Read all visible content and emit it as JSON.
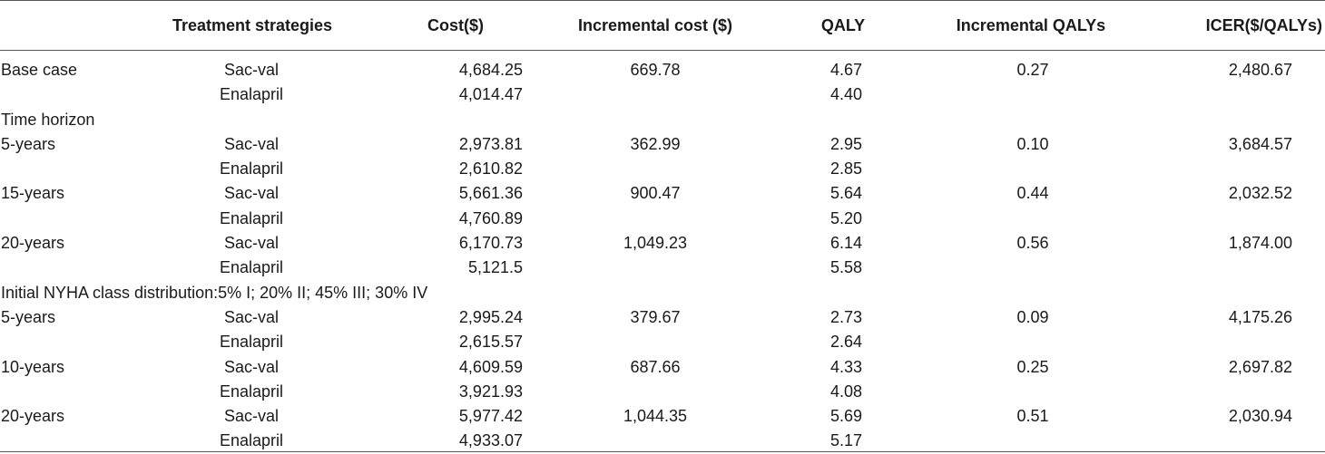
{
  "table": {
    "headers": {
      "label": "",
      "strategy": "Treatment strategies",
      "cost": "Cost($)",
      "inc_cost": "Incremental cost ($)",
      "qaly": "QALY",
      "inc_qaly": "Incremental QALYs",
      "icer": "ICER($/QALYs)"
    },
    "rows": [
      {
        "label": "Base case",
        "strategy": "Sac-val",
        "cost": "4,684.25",
        "inc_cost": "669.78",
        "qaly": "4.67",
        "inc_qaly": "0.27",
        "icer": "2,480.67"
      },
      {
        "label": "",
        "strategy": "Enalapril",
        "cost": "4,014.47",
        "inc_cost": "",
        "qaly": "4.40",
        "inc_qaly": "",
        "icer": ""
      },
      {
        "section": "Time horizon"
      },
      {
        "label": "5-years",
        "strategy": "Sac-val",
        "cost": "2,973.81",
        "inc_cost": "362.99",
        "qaly": "2.95",
        "inc_qaly": "0.10",
        "icer": "3,684.57"
      },
      {
        "label": "",
        "strategy": "Enalapril",
        "cost": "2,610.82",
        "inc_cost": "",
        "qaly": "2.85",
        "inc_qaly": "",
        "icer": ""
      },
      {
        "label": "15-years",
        "strategy": "Sac-val",
        "cost": "5,661.36",
        "inc_cost": "900.47",
        "qaly": "5.64",
        "inc_qaly": "0.44",
        "icer": "2,032.52"
      },
      {
        "label": "",
        "strategy": "Enalapril",
        "cost": "4,760.89",
        "inc_cost": "",
        "qaly": "5.20",
        "inc_qaly": "",
        "icer": ""
      },
      {
        "label": "20-years",
        "strategy": "Sac-val",
        "cost": "6,170.73",
        "inc_cost": "1,049.23",
        "qaly": "6.14",
        "inc_qaly": "0.56",
        "icer": "1,874.00"
      },
      {
        "label": "",
        "strategy": "Enalapril",
        "cost": "5,121.5",
        "inc_cost": "",
        "qaly": "5.58",
        "inc_qaly": "",
        "icer": ""
      },
      {
        "section": "Initial NYHA class distribution:5% I; 20% II; 45% III; 30% IV"
      },
      {
        "label": "5-years",
        "strategy": "Sac-val",
        "cost": "2,995.24",
        "inc_cost": "379.67",
        "qaly": "2.73",
        "inc_qaly": "0.09",
        "icer": "4,175.26"
      },
      {
        "label": "",
        "strategy": "Enalapril",
        "cost": "2,615.57",
        "inc_cost": "",
        "qaly": "2.64",
        "inc_qaly": "",
        "icer": ""
      },
      {
        "label": "10-years",
        "strategy": "Sac-val",
        "cost": "4,609.59",
        "inc_cost": "687.66",
        "qaly": "4.33",
        "inc_qaly": "0.25",
        "icer": "2,697.82"
      },
      {
        "label": "",
        "strategy": "Enalapril",
        "cost": "3,921.93",
        "inc_cost": "",
        "qaly": "4.08",
        "inc_qaly": "",
        "icer": ""
      },
      {
        "label": "20-years",
        "strategy": "Sac-val",
        "cost": "5,977.42",
        "inc_cost": "1,044.35",
        "qaly": "5.69",
        "inc_qaly": "0.51",
        "icer": "2,030.94"
      },
      {
        "label": "",
        "strategy": "Enalapril",
        "cost": "4,933.07",
        "inc_cost": "",
        "qaly": "5.17",
        "inc_qaly": "",
        "icer": ""
      }
    ]
  }
}
